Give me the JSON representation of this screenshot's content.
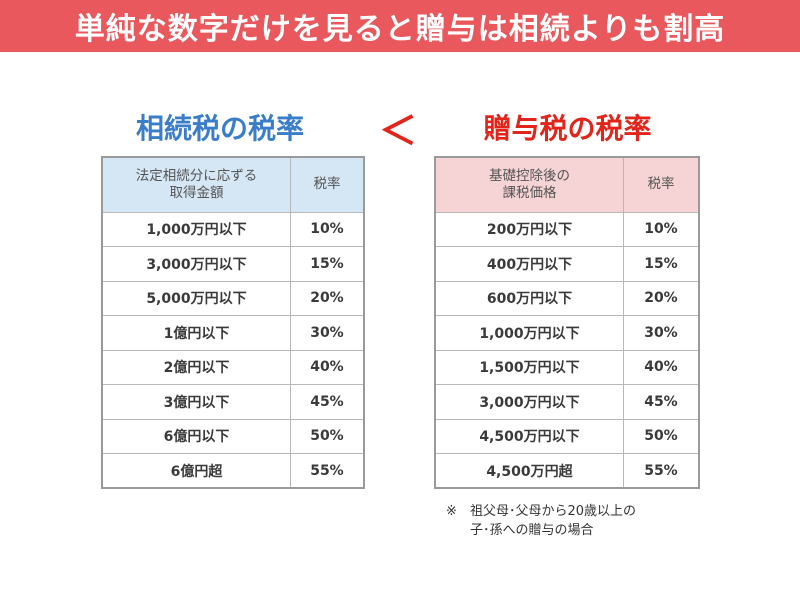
{
  "banner": {
    "title": "単純な数字だけを見ると贈与は相続よりも割高"
  },
  "comparison": {
    "left_heading": "相続税の税率",
    "operator": "＜",
    "right_heading": "贈与税の税率"
  },
  "inheritance_table": {
    "header": {
      "col1_line1": "法定相続分に応ずる",
      "col1_line2": "取得金額",
      "col2": "税率"
    },
    "rows": [
      {
        "amount": "1,000万円以下",
        "rate": "10%"
      },
      {
        "amount": "3,000万円以下",
        "rate": "15%"
      },
      {
        "amount": "5,000万円以下",
        "rate": "20%"
      },
      {
        "amount": "1億円以下",
        "rate": "30%"
      },
      {
        "amount": "2億円以下",
        "rate": "40%"
      },
      {
        "amount": "3億円以下",
        "rate": "45%"
      },
      {
        "amount": "6億円以下",
        "rate": "50%"
      },
      {
        "amount": "6億円超",
        "rate": "55%"
      }
    ]
  },
  "gift_table": {
    "header": {
      "col1_line1": "基礎控除後の",
      "col1_line2": "課税価格",
      "col2": "税率"
    },
    "rows": [
      {
        "amount": "200万円以下",
        "rate": "10%"
      },
      {
        "amount": "400万円以下",
        "rate": "15%"
      },
      {
        "amount": "600万円以下",
        "rate": "20%"
      },
      {
        "amount": "1,000万円以下",
        "rate": "30%"
      },
      {
        "amount": "1,500万円以下",
        "rate": "40%"
      },
      {
        "amount": "3,000万円以下",
        "rate": "45%"
      },
      {
        "amount": "4,500万円以下",
        "rate": "50%"
      },
      {
        "amount": "4,500万円超",
        "rate": "55%"
      }
    ]
  },
  "note": {
    "mark": "※",
    "line1": "祖父母･父母から20歳以上の",
    "line2": "子･孫への贈与の場合"
  }
}
